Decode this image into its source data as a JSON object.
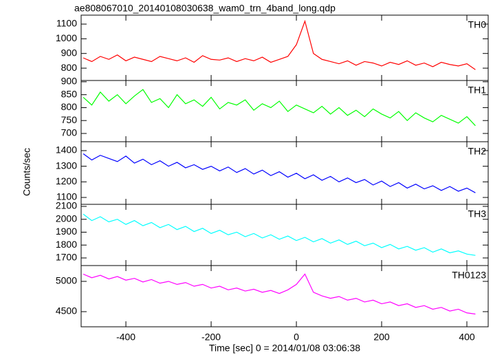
{
  "chart_data": [
    {
      "type": "line",
      "title": "ae808067010_20140108030638_wam0_trn_4band_long.qdp",
      "label": "TH0",
      "x": [
        -500,
        -480,
        -460,
        -440,
        -420,
        -400,
        -380,
        -360,
        -340,
        -320,
        -300,
        -280,
        -260,
        -240,
        -220,
        -200,
        -180,
        -160,
        -140,
        -120,
        -100,
        -80,
        -60,
        -40,
        -20,
        0,
        20,
        40,
        60,
        80,
        100,
        120,
        140,
        160,
        180,
        200,
        220,
        240,
        260,
        280,
        300,
        320,
        340,
        360,
        380,
        400,
        420
      ],
      "series": [
        {
          "name": "TH0",
          "color": "#ff0000",
          "values": [
            870,
            845,
            880,
            860,
            890,
            850,
            875,
            860,
            845,
            880,
            865,
            850,
            870,
            840,
            885,
            860,
            855,
            870,
            845,
            865,
            850,
            875,
            840,
            860,
            880,
            960,
            1120,
            900,
            860,
            845,
            830,
            850,
            820,
            845,
            835,
            815,
            840,
            825,
            850,
            820,
            835,
            810,
            840,
            825,
            815,
            830,
            790
          ]
        }
      ],
      "xlim": [
        -505,
        450
      ],
      "xticks": [
        -400,
        -200,
        0,
        200,
        400
      ],
      "ylim": [
        716,
        1161
      ],
      "yticks": [
        800,
        900,
        1000,
        1100
      ]
    },
    {
      "type": "line",
      "label": "TH1",
      "x": [
        -500,
        -480,
        -460,
        -440,
        -420,
        -400,
        -380,
        -360,
        -340,
        -320,
        -300,
        -280,
        -260,
        -240,
        -220,
        -200,
        -180,
        -160,
        -140,
        -120,
        -100,
        -80,
        -60,
        -40,
        -20,
        0,
        20,
        40,
        60,
        80,
        100,
        120,
        140,
        160,
        180,
        200,
        220,
        240,
        260,
        280,
        300,
        320,
        340,
        360,
        380,
        400,
        420
      ],
      "series": [
        {
          "name": "TH1",
          "color": "#00ff00",
          "values": [
            840,
            810,
            860,
            825,
            850,
            815,
            845,
            870,
            820,
            835,
            800,
            850,
            815,
            830,
            805,
            840,
            795,
            820,
            810,
            830,
            790,
            815,
            800,
            825,
            785,
            810,
            795,
            780,
            805,
            775,
            800,
            770,
            790,
            765,
            795,
            775,
            760,
            785,
            750,
            780,
            760,
            745,
            770,
            755,
            740,
            765,
            730
          ]
        }
      ],
      "xlim": [
        -505,
        450
      ],
      "xticks": [
        -400,
        -200,
        0,
        200,
        400
      ],
      "ylim": [
        668,
        905
      ],
      "yticks": [
        700,
        750,
        800,
        850,
        900
      ]
    },
    {
      "type": "line",
      "label": "TH2",
      "ylabel": "Counts/sec",
      "x": [
        -500,
        -480,
        -460,
        -440,
        -420,
        -400,
        -380,
        -360,
        -340,
        -320,
        -300,
        -280,
        -260,
        -240,
        -220,
        -200,
        -180,
        -160,
        -140,
        -120,
        -100,
        -80,
        -60,
        -40,
        -20,
        0,
        20,
        40,
        60,
        80,
        100,
        120,
        140,
        160,
        180,
        200,
        220,
        240,
        260,
        280,
        300,
        320,
        340,
        360,
        380,
        400,
        420
      ],
      "series": [
        {
          "name": "TH2",
          "color": "#0000ff",
          "values": [
            1380,
            1340,
            1370,
            1350,
            1330,
            1365,
            1320,
            1345,
            1310,
            1335,
            1300,
            1325,
            1290,
            1310,
            1280,
            1300,
            1270,
            1295,
            1260,
            1285,
            1250,
            1275,
            1240,
            1265,
            1230,
            1255,
            1220,
            1245,
            1210,
            1235,
            1200,
            1225,
            1195,
            1215,
            1180,
            1205,
            1170,
            1195,
            1160,
            1185,
            1155,
            1175,
            1145,
            1170,
            1140,
            1160,
            1130
          ]
        }
      ],
      "xlim": [
        -505,
        450
      ],
      "xticks": [
        -400,
        -200,
        0,
        200,
        400
      ],
      "ylim": [
        1056,
        1457
      ],
      "yticks": [
        1100,
        1200,
        1300,
        1400
      ]
    },
    {
      "type": "line",
      "label": "TH3",
      "x": [
        -500,
        -480,
        -460,
        -440,
        -420,
        -400,
        -380,
        -360,
        -340,
        -320,
        -300,
        -280,
        -260,
        -240,
        -220,
        -200,
        -180,
        -160,
        -140,
        -120,
        -100,
        -80,
        -60,
        -40,
        -20,
        0,
        20,
        40,
        60,
        80,
        100,
        120,
        140,
        160,
        180,
        200,
        220,
        240,
        260,
        280,
        300,
        320,
        340,
        360,
        380,
        400,
        420
      ],
      "series": [
        {
          "name": "TH3",
          "color": "#00ffff",
          "values": [
            2040,
            1990,
            2020,
            1980,
            2000,
            1960,
            1990,
            1950,
            1975,
            1935,
            1960,
            1920,
            1945,
            1905,
            1930,
            1890,
            1915,
            1880,
            1900,
            1865,
            1890,
            1855,
            1880,
            1845,
            1870,
            1835,
            1860,
            1825,
            1850,
            1815,
            1840,
            1805,
            1830,
            1795,
            1815,
            1780,
            1805,
            1770,
            1790,
            1760,
            1780,
            1745,
            1770,
            1740,
            1755,
            1730,
            1720
          ]
        }
      ],
      "xlim": [
        -505,
        450
      ],
      "xticks": [
        -400,
        -200,
        0,
        200,
        400
      ],
      "ylim": [
        1641,
        2116
      ],
      "yticks": [
        1700,
        1800,
        1900,
        2000,
        2100
      ]
    },
    {
      "type": "line",
      "label": "TH0123",
      "xlabel": "Time [sec] 0 = 2014/01/08 03:06:38",
      "x": [
        -500,
        -480,
        -460,
        -440,
        -420,
        -400,
        -380,
        -360,
        -340,
        -320,
        -300,
        -280,
        -260,
        -240,
        -220,
        -200,
        -180,
        -160,
        -140,
        -120,
        -100,
        -80,
        -60,
        -40,
        -20,
        0,
        20,
        40,
        60,
        80,
        100,
        120,
        140,
        160,
        180,
        200,
        220,
        240,
        260,
        280,
        300,
        320,
        340,
        360,
        380,
        400,
        420
      ],
      "series": [
        {
          "name": "TH0123",
          "color": "#ff00ff",
          "values": [
            5120,
            5060,
            5100,
            5040,
            5080,
            5020,
            5050,
            4990,
            5030,
            4970,
            5000,
            4950,
            4980,
            4920,
            4950,
            4890,
            4920,
            4860,
            4890,
            4840,
            4870,
            4820,
            4850,
            4800,
            4860,
            4950,
            5120,
            4820,
            4760,
            4720,
            4750,
            4690,
            4720,
            4660,
            4690,
            4630,
            4660,
            4600,
            4630,
            4570,
            4600,
            4540,
            4570,
            4510,
            4540,
            4480,
            4460
          ]
        }
      ],
      "xlim": [
        -505,
        450
      ],
      "xticks": [
        -400,
        -200,
        0,
        200,
        400
      ],
      "ylim": [
        4250,
        5261
      ],
      "yticks": [
        4500,
        5000
      ]
    }
  ]
}
